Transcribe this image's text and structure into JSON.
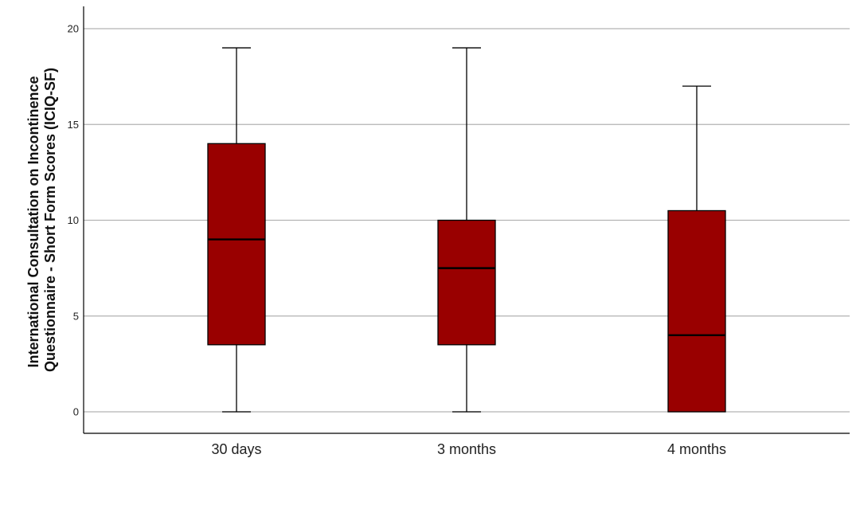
{
  "chart_data": {
    "type": "box",
    "title": "",
    "xlabel": "",
    "ylabel_lines": [
      "International Consultation on Incontinence",
      "Questionnaire - Short Form Scores (ICIQ-SF)"
    ],
    "ylim": [
      -1.1,
      21
    ],
    "yticks": [
      0,
      5,
      10,
      15,
      20
    ],
    "grid": true,
    "categories": [
      "30 days",
      "3 months",
      "4 months"
    ],
    "boxes": [
      {
        "min": 0,
        "q1": 3.5,
        "median": 9,
        "q3": 14,
        "max": 19
      },
      {
        "min": 0,
        "q1": 3.5,
        "median": 7.5,
        "q3": 10,
        "max": 19
      },
      {
        "min": 0,
        "q1": 0,
        "median": 4,
        "q3": 10.5,
        "max": 17
      }
    ],
    "colors": {
      "box_fill": "#990000",
      "line": "#000000",
      "grid": "#b3b3b3"
    }
  }
}
